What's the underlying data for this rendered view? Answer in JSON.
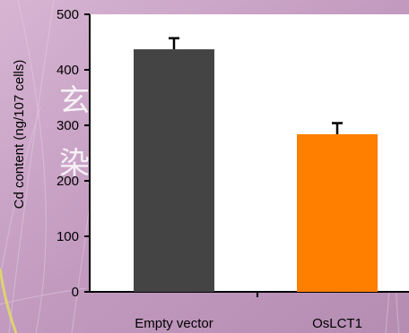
{
  "chart_data": {
    "type": "bar",
    "ylabel": "Cd content (ng/107 cells)",
    "ylim": [
      0,
      500
    ],
    "yticks": [
      "0",
      "100",
      "200",
      "300",
      "400",
      "500"
    ],
    "categories": [
      "Empty vector",
      "OsLCT1"
    ],
    "values": [
      437,
      284
    ],
    "errors": [
      20,
      20
    ],
    "colors": [
      "#444444",
      "#ff7f00"
    ],
    "grid": false,
    "legend": false
  },
  "watermark": {
    "line1": "玄",
    "line2": "染"
  },
  "colors": {
    "background": "#c9a4c4",
    "plot_area": "#ffffff",
    "axis": "#000000"
  }
}
